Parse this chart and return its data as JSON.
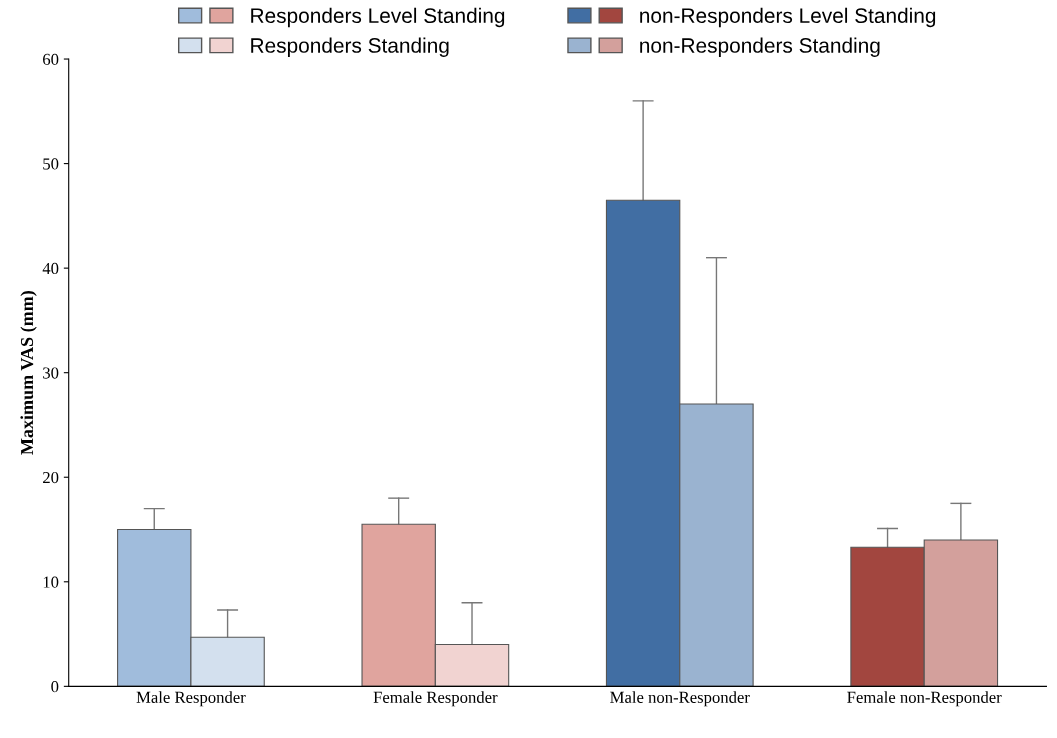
{
  "chart_data": {
    "type": "bar",
    "ylabel": "Maximum VAS (mm)",
    "categories": [
      "Male Responder",
      "Female Responder",
      "Male non-Responder",
      "Female non-Responder"
    ],
    "series": [
      {
        "name": "Responders Level Standing",
        "colors": [
          "#a0bcdc",
          "#e0a49e",
          null,
          null
        ],
        "values": [
          15,
          15.5,
          null,
          null
        ],
        "errors": [
          [
            15,
            17
          ],
          [
            15.5,
            18
          ],
          null,
          null
        ]
      },
      {
        "name": "non-Responders Level Standing",
        "colors": [
          null,
          null,
          "#416ea3",
          "#a2463f"
        ],
        "values": [
          null,
          null,
          46.5,
          13.3
        ],
        "errors": [
          null,
          null,
          [
            46.5,
            56
          ],
          [
            13.3,
            15.1
          ]
        ]
      },
      {
        "name": "Responders Standing",
        "colors": [
          "#d3e0ee",
          "#f1d3d1",
          null,
          null
        ],
        "values": [
          4.7,
          4,
          null,
          null
        ],
        "errors": [
          [
            4.7,
            7.3
          ],
          [
            4,
            8
          ],
          null,
          null
        ]
      },
      {
        "name": "non-Responders Standing",
        "colors": [
          null,
          null,
          "#9ab3d0",
          "#d3a09c"
        ],
        "values": [
          null,
          null,
          27,
          14
        ],
        "errors": [
          null,
          null,
          [
            27,
            41
          ],
          [
            14,
            17.5
          ]
        ]
      }
    ],
    "ylim": [
      0,
      60
    ],
    "yticks": [
      0,
      10,
      20,
      30,
      40,
      50,
      60
    ],
    "grid": false,
    "legend": "top"
  }
}
